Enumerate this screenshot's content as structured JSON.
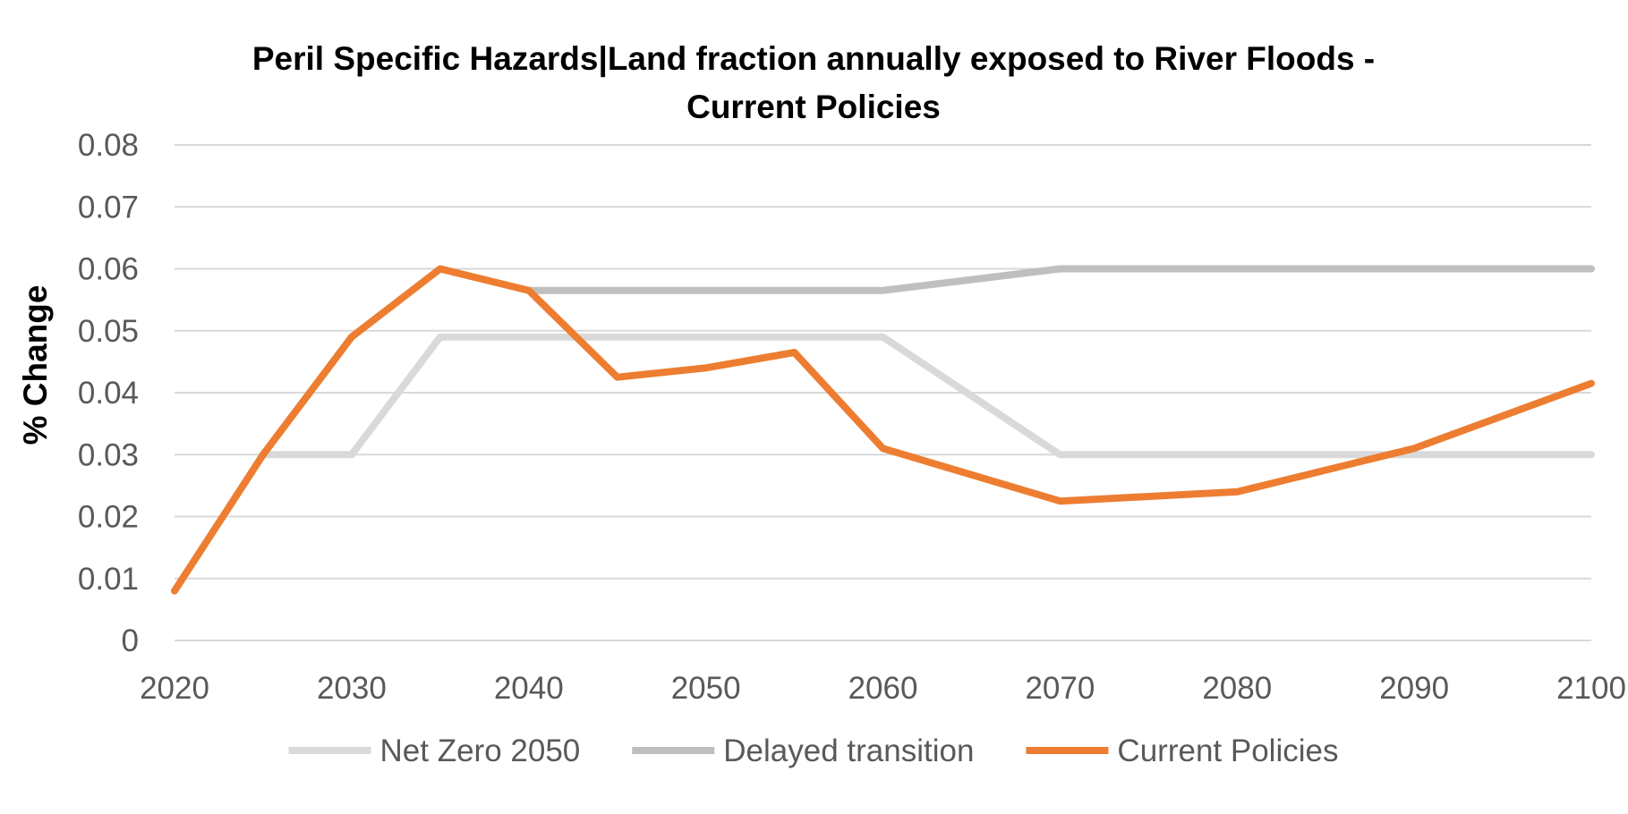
{
  "chart_data": {
    "type": "line",
    "title": [
      "Peril Specific Hazards|Land fraction annually exposed to River Floods -",
      "Current Policies"
    ],
    "xlabel": "",
    "ylabel": "% Change",
    "xlim": [
      2020,
      2100
    ],
    "ylim": [
      0,
      0.08
    ],
    "x_ticks": [
      2020,
      2030,
      2040,
      2050,
      2060,
      2070,
      2080,
      2090,
      2100
    ],
    "y_ticks": [
      "0",
      "0.01",
      "0.02",
      "0.03",
      "0.04",
      "0.05",
      "0.06",
      "0.07",
      "0.08"
    ],
    "grid": true,
    "legend_position": "bottom",
    "series": [
      {
        "name": "Net Zero 2050",
        "color": "#d9d9d9",
        "x": [
          2025,
          2030,
          2035,
          2040,
          2045,
          2050,
          2055,
          2060,
          2070,
          2080,
          2090,
          2100
        ],
        "y": [
          0.03,
          0.03,
          0.049,
          0.049,
          0.049,
          0.049,
          0.049,
          0.049,
          0.03,
          0.03,
          0.03,
          0.03
        ]
      },
      {
        "name": "Delayed transition",
        "color": "#bfbfbf",
        "x": [
          2040,
          2045,
          2050,
          2055,
          2060,
          2070,
          2080,
          2090,
          2100
        ],
        "y": [
          0.0565,
          0.0565,
          0.0565,
          0.0565,
          0.0565,
          0.06,
          0.06,
          0.06,
          0.06
        ]
      },
      {
        "name": "Current Policies",
        "color": "#ed7d31",
        "x": [
          2020,
          2025,
          2030,
          2035,
          2040,
          2045,
          2050,
          2055,
          2060,
          2070,
          2080,
          2090,
          2100
        ],
        "y": [
          0.008,
          0.03,
          0.049,
          0.06,
          0.0565,
          0.0425,
          0.044,
          0.0465,
          0.031,
          0.0225,
          0.024,
          0.031,
          0.0415
        ]
      }
    ]
  }
}
